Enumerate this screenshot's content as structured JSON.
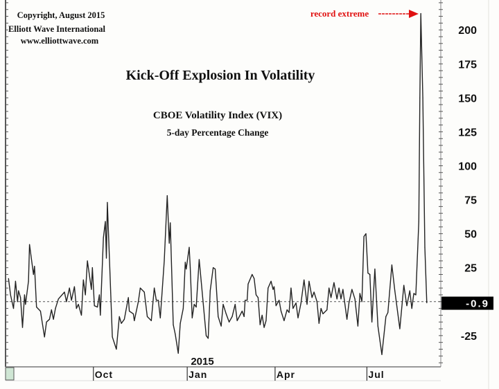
{
  "chart_data": {
    "type": "line",
    "title": "Kick-Off Explosion In Volatility",
    "subtitle": "CBOE Volatility Index (VIX)",
    "subtitle2": "5-day Percentage Change",
    "credits": [
      "Copyright, August 2015",
      "Elliott Wave International",
      "www.elliottwave.com"
    ],
    "annotation": "record extreme",
    "year_label": "2015",
    "xlabel": "",
    "ylabel": "",
    "x_units": "days since 2014-07-01",
    "xlim": [
      4,
      440
    ],
    "ylim": [
      -48,
      222
    ],
    "x_ticks": [
      {
        "label": "Oct",
        "x": 92
      },
      {
        "label": "Jan",
        "x": 186
      },
      {
        "label": "Apr",
        "x": 274
      },
      {
        "label": "Jul",
        "x": 366
      }
    ],
    "y_ticks": [
      -25,
      25,
      50,
      75,
      100,
      125,
      150,
      175,
      200
    ],
    "reference_line": 0,
    "last_value": -0.9,
    "last_value_label": "-0.9",
    "colors": {
      "line": "#222222",
      "annotation": "#e01010",
      "label_bg": "#000000"
    },
    "series": [
      {
        "name": "VIX 5-day % change",
        "points": [
          [
            7,
            17
          ],
          [
            9,
            5
          ],
          [
            12,
            -5
          ],
          [
            14,
            15
          ],
          [
            16,
            0
          ],
          [
            17,
            8
          ],
          [
            19,
            3
          ],
          [
            21,
            -19
          ],
          [
            23,
            5
          ],
          [
            24,
            -2
          ],
          [
            27,
            15
          ],
          [
            28,
            42
          ],
          [
            32,
            20
          ],
          [
            33,
            26
          ],
          [
            35,
            -4
          ],
          [
            39,
            -7
          ],
          [
            43,
            -26
          ],
          [
            45,
            -15
          ],
          [
            48,
            -13
          ],
          [
            50,
            -6
          ],
          [
            52,
            -13
          ],
          [
            54,
            -5
          ],
          [
            57,
            2
          ],
          [
            63,
            7
          ],
          [
            65,
            0
          ],
          [
            68,
            10
          ],
          [
            70,
            1
          ],
          [
            73,
            11
          ],
          [
            75,
            -5
          ],
          [
            77,
            -2
          ],
          [
            80,
            -10
          ],
          [
            82,
            16
          ],
          [
            84,
            5
          ],
          [
            86,
            30
          ],
          [
            90,
            9
          ],
          [
            91,
            25
          ],
          [
            93,
            -3
          ],
          [
            96,
            -4
          ],
          [
            98,
            5
          ],
          [
            99,
            -10
          ],
          [
            102,
            47
          ],
          [
            104,
            59
          ],
          [
            105,
            32
          ],
          [
            106,
            73
          ],
          [
            111,
            -26
          ],
          [
            115,
            -35
          ],
          [
            118,
            -11
          ],
          [
            120,
            -16
          ],
          [
            123,
            -13
          ],
          [
            127,
            3
          ],
          [
            128,
            -7
          ],
          [
            132,
            -9
          ],
          [
            133,
            -14
          ],
          [
            137,
            0
          ],
          [
            139,
            10
          ],
          [
            143,
            7
          ],
          [
            146,
            -11
          ],
          [
            150,
            -14
          ],
          [
            153,
            10
          ],
          [
            155,
            1
          ],
          [
            157,
            1
          ],
          [
            159,
            -12
          ],
          [
            163,
            30
          ],
          [
            166,
            78
          ],
          [
            168,
            43
          ],
          [
            169,
            58
          ],
          [
            172,
            -17
          ],
          [
            174,
            -24
          ],
          [
            177,
            -38
          ],
          [
            179,
            -16
          ],
          [
            182,
            -5
          ],
          [
            184,
            29
          ],
          [
            185,
            24
          ],
          [
            188,
            40
          ],
          [
            189,
            25
          ],
          [
            191,
            -12
          ],
          [
            193,
            -2
          ],
          [
            195,
            -4
          ],
          [
            198,
            31
          ],
          [
            200,
            15
          ],
          [
            205,
            -25
          ],
          [
            207,
            -27
          ],
          [
            209,
            8
          ],
          [
            212,
            25
          ],
          [
            214,
            24
          ],
          [
            217,
            -11
          ],
          [
            220,
            -18
          ],
          [
            222,
            -2
          ],
          [
            225,
            -9
          ],
          [
            228,
            -15
          ],
          [
            231,
            -11
          ],
          [
            234,
            -2
          ],
          [
            236,
            -14
          ],
          [
            241,
            -7
          ],
          [
            243,
            -11
          ],
          [
            244,
            1
          ],
          [
            246,
            1
          ],
          [
            247,
            13
          ],
          [
            251,
            20
          ],
          [
            253,
            17
          ],
          [
            255,
            5
          ],
          [
            257,
            3
          ],
          [
            259,
            -17
          ],
          [
            261,
            -10
          ],
          [
            263,
            -19
          ],
          [
            265,
            -14
          ],
          [
            267,
            10
          ],
          [
            270,
            15
          ],
          [
            272,
            9
          ],
          [
            273,
            11
          ],
          [
            275,
            -3
          ],
          [
            278,
            1
          ],
          [
            280,
            -7
          ],
          [
            283,
            -14
          ],
          [
            286,
            -6
          ],
          [
            288,
            -8
          ],
          [
            290,
            10
          ],
          [
            292,
            -5
          ],
          [
            295,
            -1
          ],
          [
            297,
            -12
          ],
          [
            300,
            -1
          ],
          [
            303,
            16
          ],
          [
            306,
            -2
          ],
          [
            308,
            15
          ],
          [
            311,
            3
          ],
          [
            313,
            7
          ],
          [
            316,
            0
          ],
          [
            318,
            -16
          ],
          [
            320,
            -5
          ],
          [
            322,
            -9
          ],
          [
            326,
            -6
          ],
          [
            328,
            10
          ],
          [
            330,
            3
          ],
          [
            333,
            14
          ],
          [
            336,
            2
          ],
          [
            338,
            10
          ],
          [
            340,
            2
          ],
          [
            342,
            9
          ],
          [
            346,
            -13
          ],
          [
            348,
            -1
          ],
          [
            351,
            9
          ],
          [
            354,
            2
          ],
          [
            357,
            -18
          ],
          [
            359,
            6
          ],
          [
            361,
            0
          ],
          [
            363,
            48
          ],
          [
            365,
            50
          ],
          [
            367,
            21
          ],
          [
            369,
            20
          ],
          [
            371,
            -15
          ],
          [
            374,
            24
          ],
          [
            377,
            -18
          ],
          [
            381,
            -39
          ],
          [
            385,
            -11
          ],
          [
            387,
            -8
          ],
          [
            391,
            27
          ],
          [
            394,
            8
          ],
          [
            399,
            -20
          ],
          [
            403,
            12
          ],
          [
            406,
            -3
          ],
          [
            409,
            8
          ],
          [
            411,
            -5
          ],
          [
            413,
            6
          ],
          [
            415,
            5
          ],
          [
            418,
            59
          ],
          [
            419,
            150
          ],
          [
            420,
            212
          ],
          [
            422,
            150
          ],
          [
            424,
            40
          ],
          [
            426,
            -0.9
          ]
        ]
      }
    ]
  }
}
